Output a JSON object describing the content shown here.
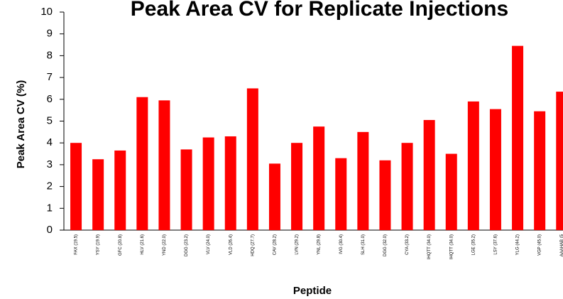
{
  "chart_data": {
    "type": "bar",
    "title": "Peak Area CV for Replicate Injections",
    "x_label": "Peptide",
    "y_label": "Peak Area CV (%)",
    "categories": [
      "FAX (19.5)",
      "YSY (19.9)",
      "GFC (20.8)",
      "HLV (21.6)",
      "YND (22.0)",
      "DGG (23.2)",
      "VLV (24.0)",
      "VLD (26.4)",
      "HDQ (27.7)",
      "CAV (28.2)",
      "LVN (29.2)",
      "YNL (29.8)",
      "IVG (30.4)",
      "SLH (31.0)",
      "DGG (32.0)",
      "CYA (33.2)",
      "IHQTT (34.0)",
      "IHQTT (34.0)",
      "LGE (35.2)",
      "LSY (37.6)",
      "YLG (44.2)",
      "VGP (45.0)",
      "AAAHAB (5"
    ],
    "values": [
      4.0,
      3.25,
      3.65,
      6.1,
      5.95,
      3.7,
      4.25,
      4.3,
      6.5,
      3.05,
      4.0,
      4.75,
      3.3,
      4.5,
      3.2,
      4.0,
      5.05,
      3.5,
      5.9,
      5.55,
      8.45,
      5.45,
      6.35
    ],
    "color": "#ff0000",
    "ylim": [
      0,
      10
    ],
    "yticks": [
      0,
      1,
      2,
      3,
      4,
      5,
      6,
      7,
      8,
      9,
      10
    ],
    "grid": false
  }
}
